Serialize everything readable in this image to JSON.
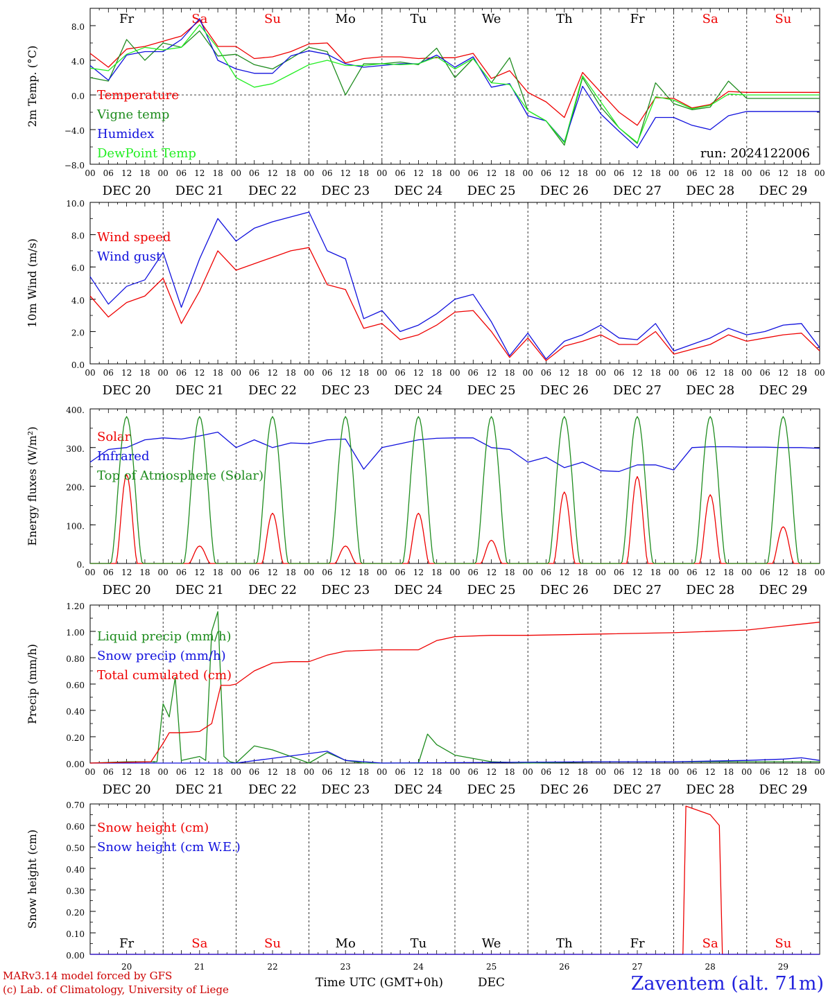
{
  "colors": {
    "red": "#ee0000",
    "green": "#1e8c1e",
    "blue": "#1010dd",
    "lightgreen": "#22ee22",
    "weekend": "#ee0000",
    "weekday": "#000000"
  },
  "days": [
    {
      "abbr": "Fr",
      "date": "DEC 20",
      "num": "20",
      "weekend": false
    },
    {
      "abbr": "Sa",
      "date": "DEC 21",
      "num": "21",
      "weekend": true
    },
    {
      "abbr": "Su",
      "date": "DEC 22",
      "num": "22",
      "weekend": true
    },
    {
      "abbr": "Mo",
      "date": "DEC 23",
      "num": "23",
      "weekend": false
    },
    {
      "abbr": "Tu",
      "date": "DEC 24",
      "num": "24",
      "weekend": false
    },
    {
      "abbr": "We",
      "date": "DEC 25",
      "num": "25",
      "weekend": false
    },
    {
      "abbr": "Th",
      "date": "DEC 26",
      "num": "26",
      "weekend": false
    },
    {
      "abbr": "Fr",
      "date": "DEC 27",
      "num": "27",
      "weekend": false
    },
    {
      "abbr": "Sa",
      "date": "DEC 28",
      "num": "28",
      "weekend": true
    },
    {
      "abbr": "Su",
      "date": "DEC 29",
      "num": "29",
      "weekend": true
    }
  ],
  "hour_ticks": [
    "00",
    "06",
    "12",
    "18"
  ],
  "run_label": "run: 2024122006",
  "footer": {
    "credit_line1": "MARv3.14 model forced by GFS",
    "credit_line2": "(c) Lab. of Climatology, University of Liege",
    "xlabel": "Time UTC (GMT+0h)",
    "month": "DEC",
    "station": "Zaventem (alt. 71m)"
  },
  "chart_data": [
    {
      "type": "line",
      "ylabel": "2m Temp. (°C)",
      "ylim": [
        -8,
        10
      ],
      "yticks": [
        -8,
        -4,
        0,
        4,
        8
      ],
      "ytick_labels": [
        "−8.0",
        "−4.0",
        "0.0",
        "4.0",
        "8.0"
      ],
      "reference_line": 0,
      "x_hours": [
        0,
        6,
        12,
        18,
        24,
        30,
        36,
        42,
        48,
        54,
        60,
        66,
        72,
        78,
        84,
        90,
        96,
        102,
        108,
        114,
        120,
        126,
        132,
        138,
        144,
        150,
        156,
        162,
        168,
        174,
        180,
        186,
        192,
        198,
        204,
        210,
        216,
        222,
        228,
        234,
        240
      ],
      "series": [
        {
          "name": "Temperature",
          "color": "red",
          "values": [
            4.8,
            3.2,
            5.3,
            5.6,
            6.2,
            6.8,
            8.6,
            5.6,
            5.6,
            4.2,
            4.4,
            5.0,
            5.9,
            6.0,
            3.7,
            4.2,
            4.4,
            4.4,
            4.2,
            4.3,
            4.3,
            4.8,
            1.9,
            2.8,
            0.3,
            -0.8,
            -2.6,
            2.6,
            0.3,
            -2.0,
            -3.5,
            -0.3,
            -0.4,
            -1.5,
            -1.1,
            0.4,
            0.3,
            0.3,
            0.3,
            0.3,
            0.3
          ]
        },
        {
          "name": "Vigne temp",
          "color": "green",
          "values": [
            2.0,
            1.6,
            6.4,
            4.0,
            6.0,
            5.5,
            7.4,
            4.5,
            4.7,
            3.5,
            3.0,
            4.2,
            5.5,
            5.0,
            0.0,
            3.6,
            3.6,
            3.8,
            3.5,
            5.4,
            2.0,
            4.2,
            1.4,
            4.3,
            -1.8,
            -3.0,
            -5.8,
            2.0,
            -1.4,
            -3.8,
            -5.6,
            1.4,
            -1.0,
            -1.7,
            -1.4,
            1.6,
            -0.4,
            -0.4,
            -0.4,
            -0.4,
            -0.4
          ]
        },
        {
          "name": "Humidex",
          "color": "blue",
          "values": [
            3.4,
            1.7,
            4.6,
            5.0,
            5.0,
            6.4,
            8.8,
            4.0,
            3.0,
            2.5,
            2.5,
            4.5,
            5.1,
            4.7,
            3.6,
            3.2,
            3.4,
            3.6,
            3.6,
            4.6,
            3.2,
            4.4,
            0.9,
            1.3,
            -2.4,
            -3.0,
            -5.4,
            1.0,
            -2.2,
            -4.2,
            -6.1,
            -2.6,
            -2.6,
            -3.5,
            -4.0,
            -2.4,
            -1.9,
            -1.9,
            -1.9,
            -1.9,
            -1.9
          ]
        },
        {
          "name": "DewPoint Temp",
          "color": "lightgreen",
          "values": [
            3.1,
            2.8,
            4.7,
            5.5,
            5.2,
            5.5,
            8.1,
            5.4,
            2.0,
            0.9,
            1.3,
            2.4,
            3.5,
            4.0,
            3.4,
            3.4,
            3.6,
            3.5,
            3.6,
            4.4,
            3.0,
            4.2,
            1.4,
            1.2,
            -1.8,
            -3.0,
            -5.5,
            2.2,
            -0.8,
            -3.8,
            -5.5,
            -0.2,
            -0.6,
            -1.6,
            -1.2,
            0.1,
            0.0,
            0.0,
            0.0,
            0.0,
            0.0
          ]
        }
      ]
    },
    {
      "type": "line",
      "ylabel": "10m Wind (m/s)",
      "ylim": [
        0,
        10
      ],
      "yticks": [
        0,
        2,
        4,
        6,
        8,
        10
      ],
      "ytick_labels": [
        "0.0",
        "2.0",
        "4.0",
        "6.0",
        "8.0",
        "10.0"
      ],
      "reference_line": 5,
      "x_hours": [
        0,
        6,
        12,
        18,
        24,
        30,
        36,
        42,
        48,
        54,
        60,
        66,
        72,
        78,
        84,
        90,
        96,
        102,
        108,
        114,
        120,
        126,
        132,
        138,
        144,
        150,
        156,
        162,
        168,
        174,
        180,
        186,
        192,
        198,
        204,
        210,
        216,
        222,
        228,
        234,
        240
      ],
      "series": [
        {
          "name": "Wind speed",
          "color": "red",
          "values": [
            4.2,
            2.9,
            3.8,
            4.2,
            5.3,
            2.5,
            4.5,
            7.0,
            5.8,
            6.2,
            6.6,
            7.0,
            7.2,
            4.9,
            4.6,
            2.2,
            2.5,
            1.5,
            1.8,
            2.4,
            3.2,
            3.3,
            2.0,
            0.4,
            1.6,
            0.2,
            1.1,
            1.4,
            1.8,
            1.2,
            1.2,
            2.0,
            0.6,
            0.9,
            1.2,
            1.8,
            1.4,
            1.6,
            1.8,
            1.9,
            0.8
          ]
        },
        {
          "name": "Wind gust",
          "color": "blue",
          "values": [
            5.4,
            3.7,
            4.8,
            5.2,
            6.9,
            3.5,
            6.5,
            9.0,
            7.6,
            8.4,
            8.8,
            9.1,
            9.4,
            7.0,
            6.5,
            2.8,
            3.3,
            2.0,
            2.4,
            3.1,
            4.0,
            4.3,
            2.6,
            0.5,
            1.9,
            0.3,
            1.4,
            1.8,
            2.4,
            1.6,
            1.5,
            2.5,
            0.8,
            1.2,
            1.6,
            2.2,
            1.8,
            2.0,
            2.4,
            2.5,
            1.0
          ]
        }
      ]
    },
    {
      "type": "line",
      "ylabel": "Energy fluxes (W/m²)",
      "ylim": [
        0,
        400
      ],
      "yticks": [
        0,
        100,
        200,
        300,
        400
      ],
      "ytick_labels": [
        "0.",
        "100.",
        "200.",
        "300.",
        "400."
      ],
      "series": [
        {
          "name": "Solar",
          "color": "red",
          "values_daily_peak": [
            230,
            45,
            130,
            45,
            130,
            60,
            185,
            225,
            178,
            95
          ]
        },
        {
          "name": "Infrared",
          "color": "blue",
          "x_hours": [
            0,
            6,
            12,
            18,
            24,
            30,
            36,
            42,
            48,
            54,
            60,
            66,
            72,
            78,
            84,
            90,
            96,
            102,
            108,
            114,
            120,
            126,
            132,
            138,
            144,
            150,
            156,
            162,
            168,
            174,
            180,
            186,
            192,
            198,
            204,
            210,
            216,
            222,
            228,
            234,
            240
          ],
          "values": [
            262,
            295,
            300,
            320,
            325,
            322,
            330,
            340,
            300,
            320,
            300,
            312,
            310,
            320,
            322,
            244,
            300,
            310,
            320,
            324,
            325,
            325,
            300,
            295,
            262,
            275,
            248,
            262,
            240,
            238,
            255,
            255,
            242,
            300,
            302,
            302,
            301,
            301,
            300,
            300,
            298
          ]
        },
        {
          "name": "Top of Atmosphere (Solar)",
          "color": "green",
          "values_daily_peak": [
            380,
            380,
            380,
            380,
            380,
            380,
            380,
            380,
            380,
            380
          ]
        }
      ]
    },
    {
      "type": "line",
      "ylabel": "Precip (mm/h)",
      "ylim": [
        0,
        1.2
      ],
      "yticks": [
        0,
        0.2,
        0.4,
        0.6,
        0.8,
        1.0,
        1.2
      ],
      "ytick_labels": [
        "0.00",
        "0.20",
        "0.40",
        "0.60",
        "0.80",
        "1.00",
        "1.20"
      ],
      "series": [
        {
          "name": "Liquid precip (mm/h)",
          "color": "green",
          "x_hours": [
            0,
            12,
            22,
            24,
            26,
            28,
            30,
            36,
            38,
            40,
            42,
            44,
            46,
            48,
            54,
            60,
            66,
            72,
            78,
            84,
            90,
            96,
            108,
            111,
            114,
            120,
            132,
            144,
            168,
            192,
            216,
            240
          ],
          "values": [
            0,
            0.01,
            0.01,
            0.45,
            0.35,
            0.65,
            0.02,
            0.05,
            0.02,
            1.0,
            1.15,
            0.05,
            0.01,
            0.0,
            0.13,
            0.1,
            0.05,
            0.0,
            0.08,
            0.02,
            0.0,
            0.0,
            0.0,
            0.22,
            0.14,
            0.06,
            0.01,
            0.0,
            0.01,
            0.01,
            0.01,
            0.01
          ]
        },
        {
          "name": "Snow precip (mm/h)",
          "color": "blue",
          "x_hours": [
            0,
            48,
            78,
            84,
            96,
            168,
            192,
            216,
            228,
            234,
            240
          ],
          "values": [
            0,
            0,
            0.09,
            0.02,
            0,
            0.01,
            0.01,
            0.02,
            0.03,
            0.04,
            0.02
          ]
        },
        {
          "name": "Total cumulated (cm)",
          "color": "red",
          "x_hours": [
            0,
            20,
            24,
            26,
            30,
            36,
            40,
            43,
            46,
            48,
            54,
            60,
            66,
            72,
            78,
            84,
            96,
            108,
            114,
            120,
            132,
            144,
            168,
            192,
            216,
            228,
            240
          ],
          "values": [
            0,
            0.01,
            0.15,
            0.23,
            0.23,
            0.24,
            0.3,
            0.59,
            0.59,
            0.6,
            0.7,
            0.76,
            0.77,
            0.77,
            0.82,
            0.85,
            0.86,
            0.86,
            0.93,
            0.96,
            0.97,
            0.97,
            0.98,
            0.99,
            1.01,
            1.04,
            1.07
          ]
        }
      ]
    },
    {
      "type": "line",
      "ylabel": "Snow height (cm)",
      "ylim": [
        0,
        0.7
      ],
      "yticks": [
        0,
        0.1,
        0.2,
        0.3,
        0.4,
        0.5,
        0.6,
        0.7
      ],
      "ytick_labels": [
        "0.00",
        "0.10",
        "0.20",
        "0.30",
        "0.40",
        "0.50",
        "0.60",
        "0.70"
      ],
      "series": [
        {
          "name": "Snow height (cm)",
          "color": "red",
          "x_hours": [
            0,
            195,
            196,
            204,
            207,
            208,
            240
          ],
          "values": [
            0,
            0,
            0.69,
            0.65,
            0.6,
            0,
            0
          ]
        },
        {
          "name": "Snow height (cm W.E.)",
          "color": "blue",
          "x_hours": [
            0,
            240
          ],
          "values": [
            0,
            0
          ]
        }
      ]
    }
  ]
}
